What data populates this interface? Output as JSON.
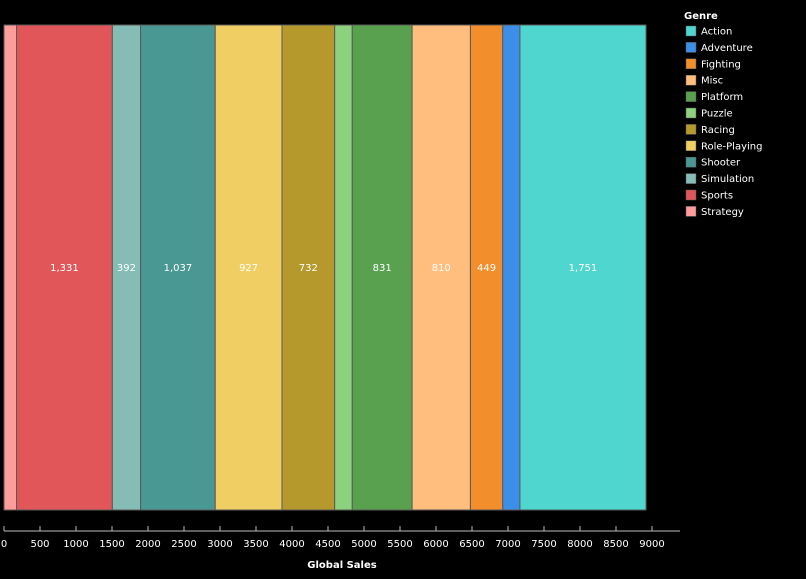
{
  "chart_data": {
    "type": "bar",
    "orientation": "horizontal-stacked",
    "title": "",
    "xlabel": "Global Sales",
    "ylabel": "",
    "xlim": [
      0,
      9000
    ],
    "xticks": [
      0,
      500,
      1000,
      1500,
      2000,
      2500,
      3000,
      3500,
      4000,
      4500,
      5000,
      5500,
      6000,
      6500,
      7000,
      7500,
      8000,
      8500,
      9000
    ],
    "grid": false,
    "legend": {
      "title": "Genre",
      "placement": "top-right"
    },
    "stack_order": [
      "Strategy",
      "Sports",
      "Simulation",
      "Shooter",
      "Role-Playing",
      "Racing",
      "Puzzle",
      "Platform",
      "Misc",
      "Fighting",
      "Adventure",
      "Action"
    ],
    "series": [
      {
        "name": "Action",
        "value": 1751,
        "label": "1,751",
        "color": "#4fd6cf"
      },
      {
        "name": "Adventure",
        "value": 239,
        "label": "",
        "color": "#3d8ee8"
      },
      {
        "name": "Fighting",
        "value": 449,
        "label": "449",
        "color": "#f28e2b"
      },
      {
        "name": "Misc",
        "value": 810,
        "label": "810",
        "color": "#ffbe7d"
      },
      {
        "name": "Platform",
        "value": 831,
        "label": "831",
        "color": "#59a14f"
      },
      {
        "name": "Puzzle",
        "value": 244,
        "label": "",
        "color": "#8cd17d"
      },
      {
        "name": "Racing",
        "value": 732,
        "label": "732",
        "color": "#b6992d"
      },
      {
        "name": "Role-Playing",
        "value": 927,
        "label": "927",
        "color": "#f1ce63"
      },
      {
        "name": "Shooter",
        "value": 1037,
        "label": "1,037",
        "color": "#499894"
      },
      {
        "name": "Simulation",
        "value": 392,
        "label": "392",
        "color": "#86bcb6"
      },
      {
        "name": "Sports",
        "value": 1331,
        "label": "1,331",
        "color": "#e15759"
      },
      {
        "name": "Strategy",
        "value": 174,
        "label": "",
        "color": "#ff9d9a"
      }
    ]
  }
}
